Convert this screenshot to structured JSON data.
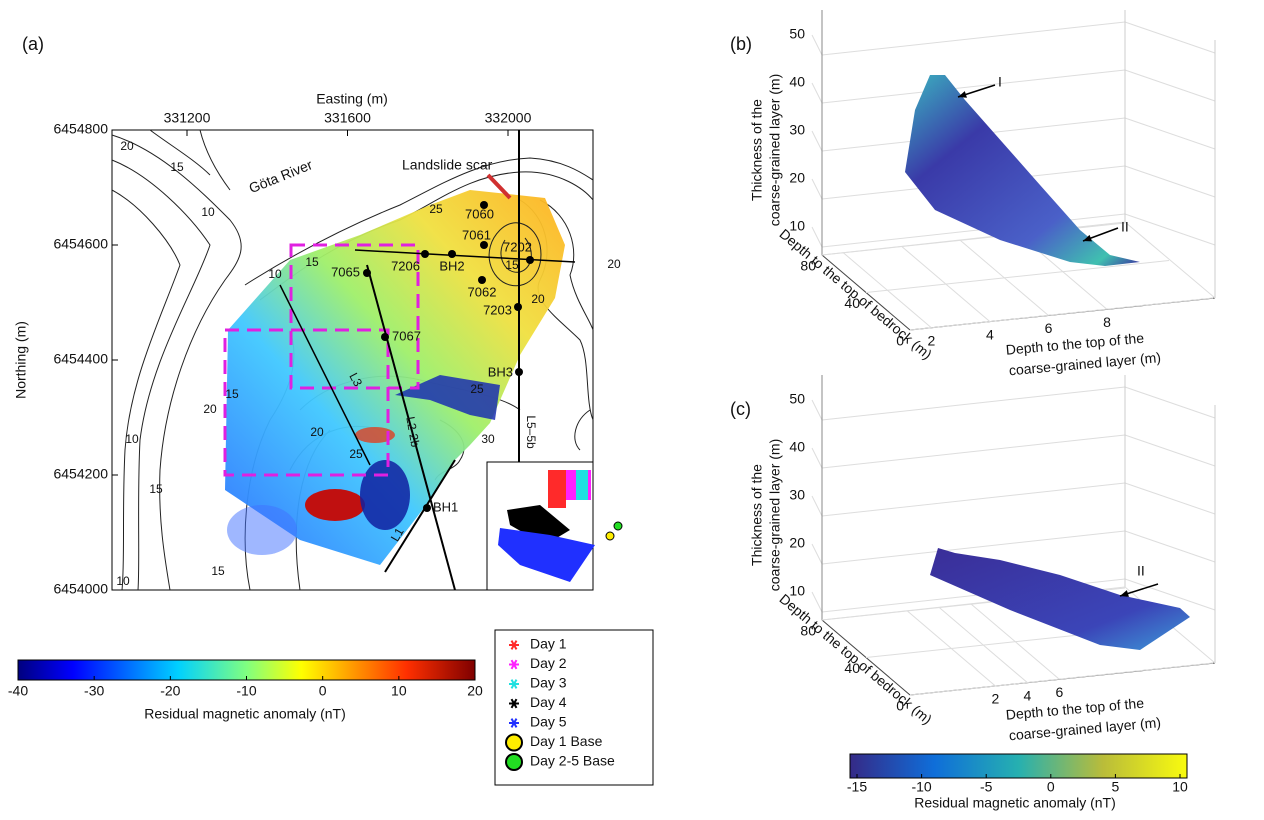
{
  "panel_a": {
    "label": "(a)",
    "x_axis_title": "Easting (m)",
    "y_axis_title": "Northing (m)",
    "xticks": [
      331200,
      331600,
      332000
    ],
    "yticks": [
      6454800,
      6454600,
      6454400,
      6454200,
      6454000
    ],
    "places": [
      "Göta River",
      "Landslide scar"
    ],
    "boreholes": [
      "7060",
      "7061",
      "7202",
      "7206",
      "BH2",
      "7065",
      "7062",
      "7203",
      "7067",
      "BH3",
      "BH1"
    ],
    "lines": [
      "L3",
      "L2-2b",
      "L5–5b",
      "L1"
    ],
    "contour_labels": [
      "20",
      "15",
      "10",
      "10",
      "15",
      "15",
      "20",
      "20",
      "25",
      "25",
      "20",
      "15",
      "25",
      "15",
      "10",
      "15",
      "10",
      "20",
      "30"
    ],
    "colorbar": {
      "ticks": [
        -40,
        -30,
        -20,
        -10,
        0,
        10,
        20
      ],
      "title": "Residual magnetic anomaly (nT)"
    },
    "legend": [
      {
        "label": "Day 1",
        "color": "#ff2a2a",
        "marker": "asterisk"
      },
      {
        "label": "Day 2",
        "color": "#ff20ff",
        "marker": "asterisk"
      },
      {
        "label": "Day 3",
        "color": "#20e0e0",
        "marker": "asterisk"
      },
      {
        "label": "Day 4",
        "color": "#000000",
        "marker": "asterisk"
      },
      {
        "label": "Day 5",
        "color": "#2030ff",
        "marker": "asterisk"
      },
      {
        "label": "Day 1 Base",
        "color": "#ffee00",
        "marker": "circle"
      },
      {
        "label": "Day 2-5 Base",
        "color": "#22dd22",
        "marker": "circle"
      }
    ]
  },
  "panel_b": {
    "label": "(b)",
    "z_title": [
      "Thickness of the",
      "coarse-grained layer (m)"
    ],
    "y_title": "Depth to the top of bedrock (m)",
    "x_title": [
      "Depth to the top of the",
      "coarse-grained layer (m)"
    ],
    "zticks": [
      50,
      40,
      30,
      20,
      10
    ],
    "yticks": [
      80,
      40,
      0
    ],
    "xticks": [
      2,
      4,
      6,
      8
    ],
    "annotations": [
      "I",
      "II"
    ]
  },
  "panel_c": {
    "label": "(c)",
    "z_title": [
      "Thickness of the",
      "coarse-grained layer (m)"
    ],
    "y_title": "Depth to the top of bedrock (m)",
    "x_title": [
      "Depth to the top of the",
      "coarse-grained layer (m)"
    ],
    "zticks": [
      50,
      40,
      30,
      20,
      10
    ],
    "yticks": [
      80,
      40,
      0
    ],
    "xticks": [
      2,
      4,
      6
    ],
    "annotations": [
      "II"
    ],
    "colorbar": {
      "ticks": [
        -15,
        -10,
        -5,
        0,
        5,
        10
      ],
      "title": "Residual magnetic anomaly (nT)"
    }
  }
}
